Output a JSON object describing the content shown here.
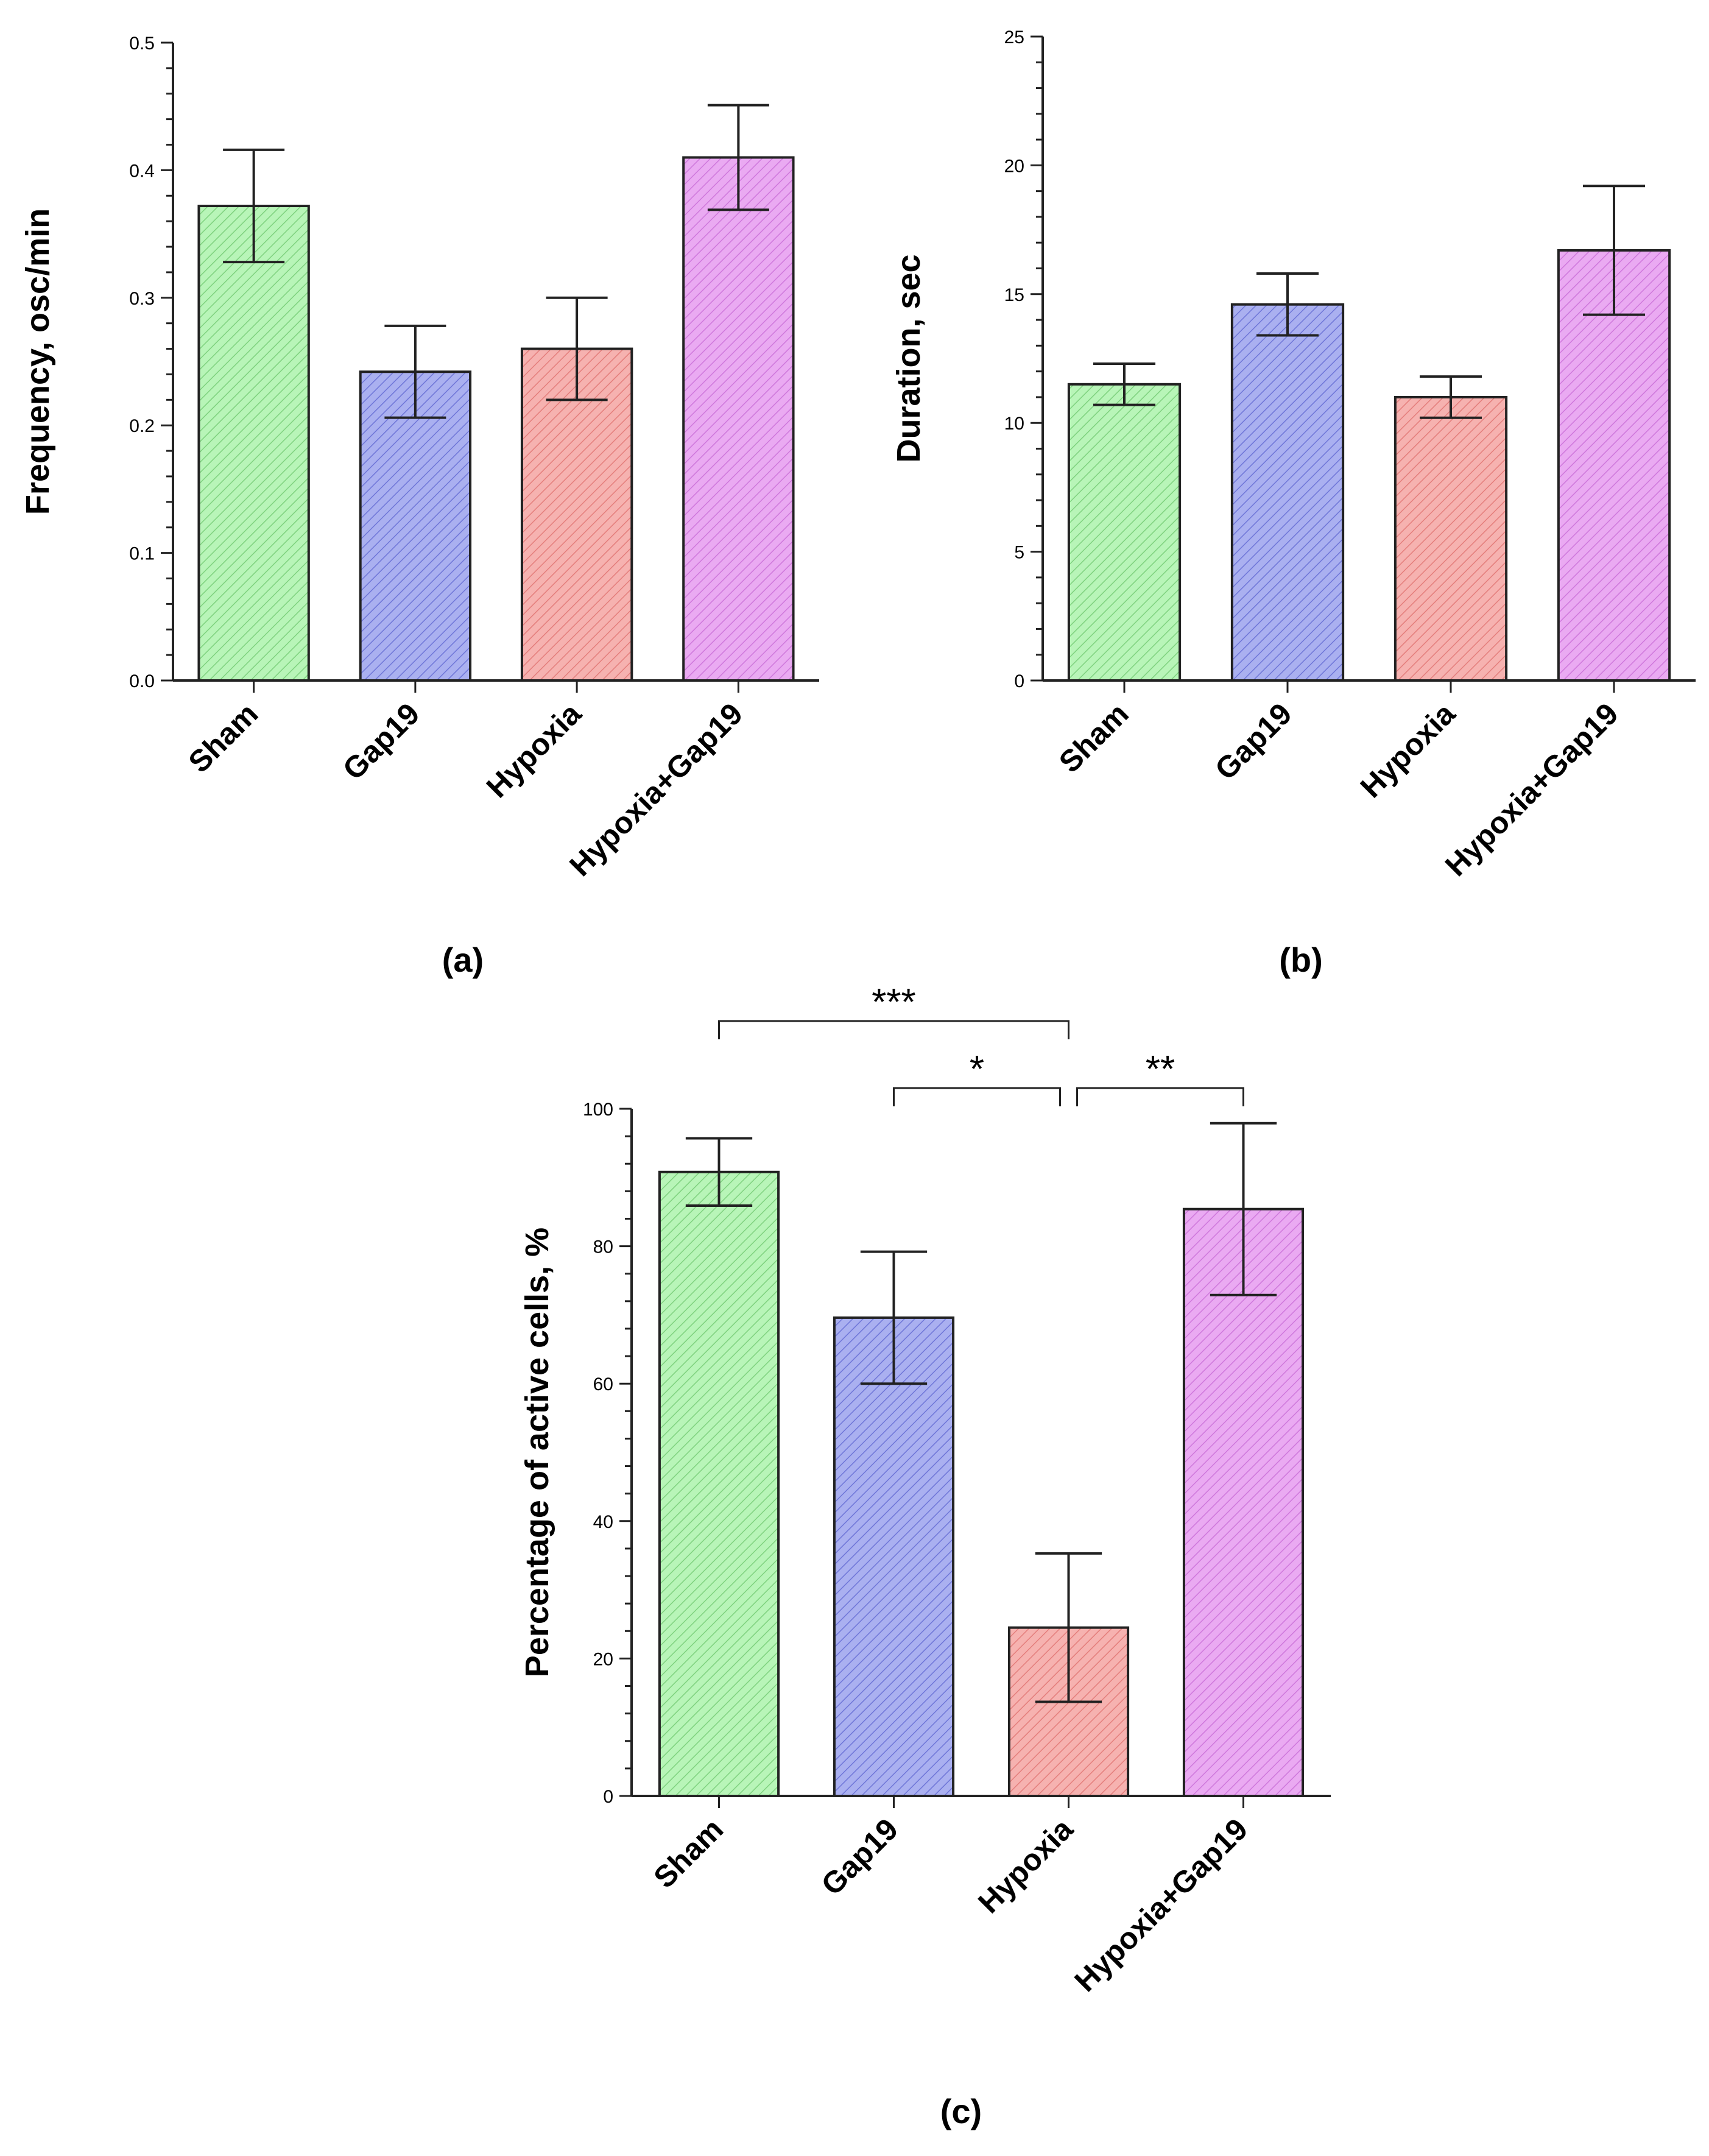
{
  "colors": {
    "fills": [
      "#b8f5b8",
      "#aab0f0",
      "#f6b2b0",
      "#eaaaf2"
    ],
    "hatch": [
      "#7fd27f",
      "#6f76d8",
      "#e47e7c",
      "#cf78dc"
    ]
  },
  "chart_data": [
    {
      "type": "bar",
      "panel_label": "(a)",
      "categories": [
        "Sham",
        "Gap19",
        "Hypoxia",
        "Hypoxia+Gap19"
      ],
      "values": [
        0.372,
        0.242,
        0.26,
        0.41
      ],
      "errors": [
        0.044,
        0.036,
        0.04,
        0.041
      ],
      "ylabel": "Frequency, osc/min",
      "ylim": [
        0,
        0.5
      ],
      "ticks": [
        0,
        0.1,
        0.2,
        0.3,
        0.4,
        0.5
      ],
      "tick_labels": [
        "0.0",
        "0.1",
        "0.2",
        "0.3",
        "0.4",
        "0.5"
      ],
      "minor_per_major": 5,
      "significance": []
    },
    {
      "type": "bar",
      "panel_label": "(b)",
      "categories": [
        "Sham",
        "Gap19",
        "Hypoxia",
        "Hypoxia+Gap19"
      ],
      "values": [
        11.5,
        14.6,
        11.0,
        16.7
      ],
      "errors": [
        0.8,
        1.2,
        0.8,
        2.5
      ],
      "ylabel": "Duration, sec",
      "ylim": [
        0,
        25
      ],
      "ticks": [
        0,
        5,
        10,
        15,
        20,
        25
      ],
      "tick_labels": [
        "0",
        "5",
        "10",
        "15",
        "20",
        "25"
      ],
      "minor_per_major": 5,
      "significance": []
    },
    {
      "type": "bar",
      "panel_label": "(c)",
      "categories": [
        "Sham",
        "Gap19",
        "Hypoxia",
        "Hypoxia+Gap19"
      ],
      "values": [
        90.8,
        69.6,
        24.5,
        85.4
      ],
      "errors": [
        4.9,
        9.6,
        10.8,
        12.5
      ],
      "ylabel": "Percentage of active cells, %",
      "ylim": [
        0,
        100
      ],
      "ticks": [
        0,
        20,
        40,
        60,
        80,
        100
      ],
      "tick_labels": [
        "0",
        "20",
        "40",
        "60",
        "80",
        "100"
      ],
      "minor_per_major": 5,
      "significance": [
        {
          "from": 0,
          "to": 2,
          "label": "***",
          "level": 2
        },
        {
          "from": 1,
          "to": 2,
          "label": "*",
          "level": 1
        },
        {
          "from": 2,
          "to": 3,
          "label": "**",
          "level": 1
        }
      ]
    }
  ]
}
